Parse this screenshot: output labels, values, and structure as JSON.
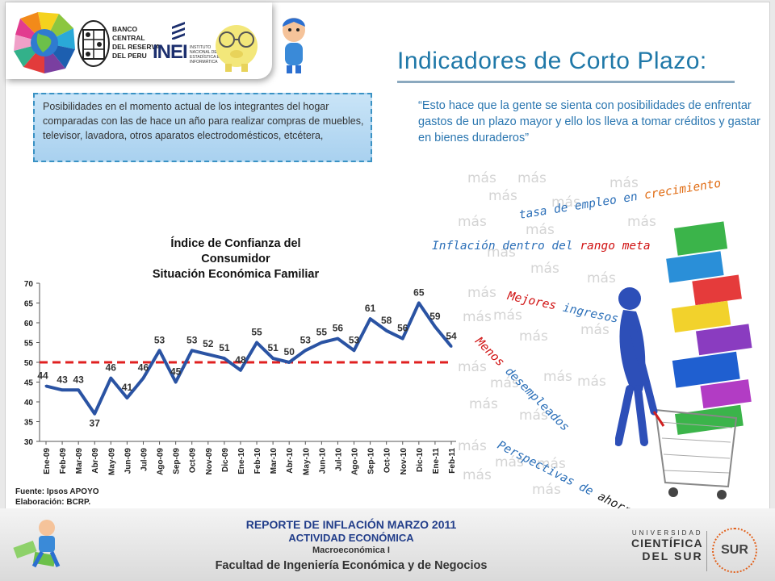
{
  "header": {
    "bcr_logo_lines": [
      "BANCO",
      "CENTRAL",
      "DEL RESERVA",
      "DEL PERU"
    ],
    "inei_logo": "INEI",
    "inei_logo_lines": [
      "INSTITUTO",
      "NACIONAL DE",
      "ESTADÍSTICA E",
      "INFORMÁTICA"
    ],
    "title": "Indicadores de Corto Plazo:"
  },
  "description": "Posibilidades en el momento actual de los integrantes del hogar comparadas con las de hace un año para realizar compras de muebles, televisor, lavadora, otros aparatos electrodomésticos, etcétera,",
  "quote": "“Esto hace que la gente se sienta con posibilidades de enfrentar gastos de un plazo mayor y ello los lleva a tomar créditos y gastar en bienes duraderos”",
  "chart_data": {
    "type": "line",
    "title": "Índice de Confianza  del Consumidor",
    "subtitle": "Situación Económica Familiar",
    "categories": [
      "Ene-09",
      "Feb-09",
      "Mar-09",
      "Abr-09",
      "May-09",
      "Jun-09",
      "Jul-09",
      "Ago-09",
      "Sep-09",
      "Oct-09",
      "Nov-09",
      "Dic-09",
      "Ene-10",
      "Feb-10",
      "Mar-10",
      "Abr-10",
      "May-10",
      "Jun-10",
      "Jul-10",
      "Ago-10",
      "Sep-10",
      "Oct-10",
      "Nov-10",
      "Dic-10",
      "Ene-11",
      "Feb-11"
    ],
    "series": [
      {
        "values": [
          44,
          43,
          43,
          37,
          46,
          41,
          46,
          53,
          45,
          53,
          52,
          51,
          48,
          55,
          51,
          50,
          53,
          55,
          56,
          53,
          61,
          58,
          56,
          65,
          59,
          54
        ],
        "color": "#2a53a3"
      }
    ],
    "data_labels": [
      "44",
      "43",
      "43",
      "37",
      "46",
      "41",
      "46",
      "53",
      "45",
      "53",
      "52",
      "51",
      "48",
      "55",
      "51",
      "50",
      "53",
      "55",
      "56",
      "53",
      "61",
      "58",
      "56",
      "65",
      "59",
      "54"
    ],
    "reference_line": {
      "value": 50,
      "color": "#e02020",
      "style": "dashed"
    },
    "yticks": [
      "30",
      "35",
      "40",
      "45",
      "50",
      "55",
      "60",
      "65",
      "70"
    ],
    "ylim": [
      30,
      70
    ],
    "grid": false,
    "legend": "none"
  },
  "source": "Fuente: Ipsos APOYO",
  "elaboration": "Elaboración: BCRP.",
  "decor_word": "más",
  "phrases": [
    {
      "a": "tasa de empleo en ",
      "b": "crecimiento",
      "color_a": "#2b6fb8",
      "color_b": "#e06a10"
    },
    {
      "a": "Inflación dentro del ",
      "b": "rango meta",
      "color_a": "#2b6fb8",
      "color_b": "#d01010"
    },
    {
      "a": "Mejores ",
      "b": "ingresos",
      "color_a": "#d01010",
      "color_b": "#2b6fb8"
    },
    {
      "a": "Menos ",
      "b": "desempleados",
      "color_a": "#d01010",
      "color_b": "#2b6fb8"
    },
    {
      "a": "Perspectivas de ",
      "b": "ahorro",
      "color_a": "#2b6fb8",
      "color_b": "#222222"
    }
  ],
  "footer": {
    "line1": "REPORTE DE INFLACIÓN MARZO 2011",
    "line2": "ACTIVIDAD ECONÓMICA",
    "line3": "Macroeconómica I",
    "line4": "Facultad de Ingeniería Económica y de Negocios",
    "ucsur_lines": [
      "UNIVERSIDAD",
      "CIENTÍFICA",
      "DEL SUR"
    ],
    "seal_text": "SUR"
  },
  "colors": {
    "title": "#1f78a8",
    "quote": "#2a76b0",
    "footer_text": "#223e8a",
    "desc_border": "#3a92c4"
  }
}
